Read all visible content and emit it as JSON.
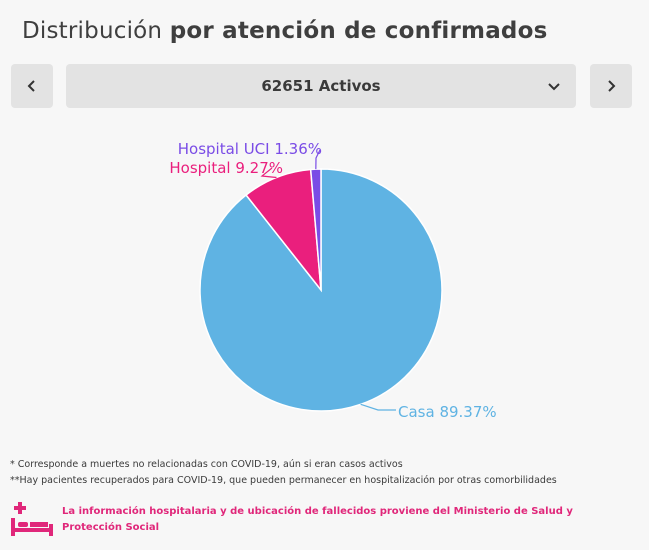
{
  "header": {
    "title_light": "Distribución",
    "title_bold": "por atención de confirmados"
  },
  "selector": {
    "value": "62651 Activos",
    "prev_icon": "chevron-left-icon",
    "next_icon": "chevron-right-icon",
    "dropdown_icon": "chevron-down-icon"
  },
  "chart_data": {
    "type": "pie",
    "slices": [
      {
        "label": "Casa 89.37%",
        "name": "Casa",
        "value": 89.37,
        "color": "#5fb3e3"
      },
      {
        "label": "Hospital 9.27%",
        "name": "Hospital",
        "value": 9.27,
        "color": "#ea1f7d"
      },
      {
        "label": "Hospital UCI 1.36%",
        "name": "Hospital UCI",
        "value": 1.36,
        "color": "#7a4ce6"
      }
    ]
  },
  "footnotes": {
    "note1": "* Corresponde a muertes no relacionadas con COVID-19, aún si eran casos activos",
    "note2": "**Hay pacientes recuperados para COVID-19, que pueden permanecer en hospitalización por otras comorbilidades"
  },
  "info": {
    "icon": "hospital-bed-icon",
    "text": "La información hospitalaria y de ubicación de fallecidos proviene del Ministerio de Salud y Protección Social",
    "color": "#e0277a"
  }
}
